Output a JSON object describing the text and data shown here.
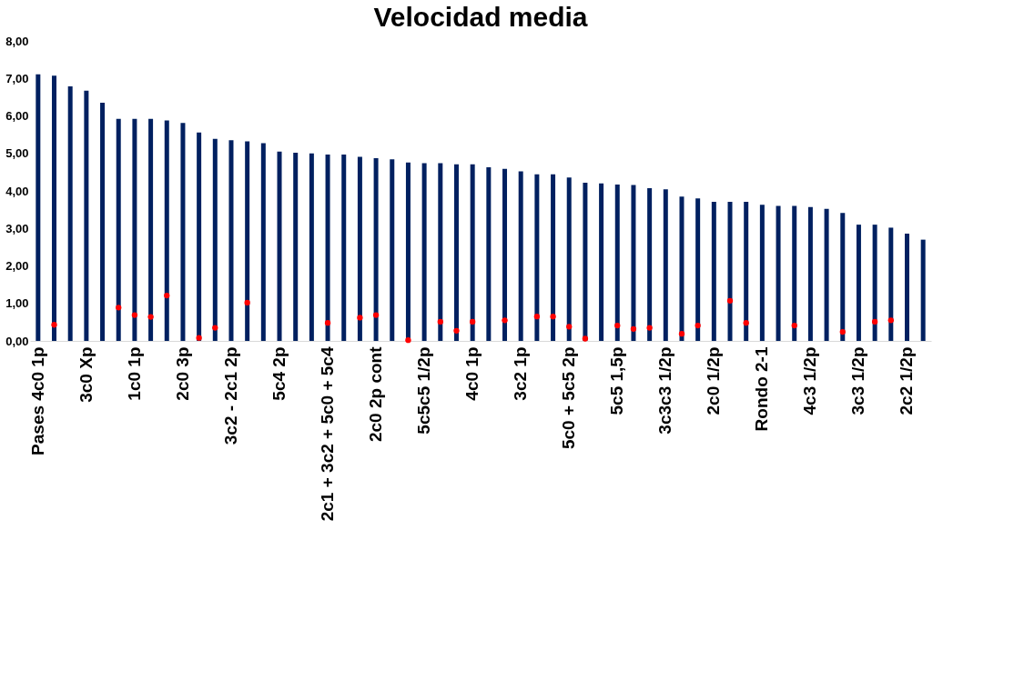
{
  "chart_data": {
    "type": "bar",
    "title": "Velocidad media",
    "categories": [
      "Pases 4c0 1p",
      null,
      null,
      "3c0 Xp",
      null,
      null,
      "1c0 1p",
      null,
      null,
      "2c0 3p",
      null,
      null,
      "3c2 - 2c1 2p",
      null,
      null,
      "5c4 2p",
      null,
      null,
      "2c1 + 3c2 + 5c0 + 5c4",
      null,
      null,
      "2c0 2p cont",
      null,
      null,
      "5c5c5 1/2p",
      null,
      null,
      "4c0 1p",
      null,
      null,
      "3c2 1p",
      null,
      null,
      "5c0 + 5c5 2p",
      null,
      null,
      "5c5 1,5p",
      null,
      null,
      "3c3c3 1/2p",
      null,
      null,
      "2c0 1/2p",
      null,
      null,
      "Rondo 2-1",
      null,
      null,
      "4c3 1/2p",
      null,
      null,
      "3c3 1/2p",
      null,
      null,
      "2c2 1/2p",
      null
    ],
    "series": [
      {
        "color": "#002060",
        "values": [
          7.11,
          7.07,
          6.79,
          6.67,
          6.35,
          5.92,
          5.92,
          5.92,
          5.88,
          5.81,
          5.56,
          5.39,
          5.35,
          5.32,
          5.27,
          5.05,
          5.02,
          5.0,
          4.97,
          4.97,
          4.91,
          4.87,
          4.84,
          4.76,
          4.74,
          4.74,
          4.71,
          4.71,
          4.63,
          4.59,
          4.52,
          4.44,
          4.44,
          4.36,
          4.22,
          4.2,
          4.17,
          4.16,
          4.07,
          4.04,
          3.85,
          3.8,
          3.71,
          3.71,
          3.71,
          3.63,
          3.6,
          3.6,
          3.57,
          3.52,
          3.41,
          3.1,
          3.1,
          3.02,
          2.86,
          2.7
        ]
      },
      {
        "type": "scatter",
        "color": "#ff0000",
        "values": [
          null,
          0.43,
          null,
          null,
          null,
          0.89,
          0.69,
          0.64,
          1.21,
          null,
          0.08,
          0.35,
          null,
          1.02,
          null,
          null,
          null,
          null,
          0.48,
          null,
          0.62,
          0.69,
          null,
          0.02,
          null,
          0.51,
          0.27,
          0.51,
          null,
          0.55,
          null,
          0.65,
          0.65,
          0.38,
          0.06,
          null,
          0.41,
          0.32,
          0.35,
          null,
          0.19,
          0.41,
          null,
          1.07,
          0.48,
          null,
          null,
          0.41,
          null,
          null,
          0.24,
          null,
          0.51,
          0.55,
          null,
          null
        ]
      }
    ],
    "ylim": [
      0,
      8
    ],
    "yticks": [
      {
        "value": 0,
        "label": "0,00"
      },
      {
        "value": 1,
        "label": "1,00"
      },
      {
        "value": 2,
        "label": "2,00"
      },
      {
        "value": 3,
        "label": "3,00"
      },
      {
        "value": 4,
        "label": "4,00"
      },
      {
        "value": 5,
        "label": "5,00"
      },
      {
        "value": 6,
        "label": "6,00"
      },
      {
        "value": 7,
        "label": "7,00"
      },
      {
        "value": 8,
        "label": "8,00"
      }
    ],
    "marker": "circle",
    "grid": false
  }
}
